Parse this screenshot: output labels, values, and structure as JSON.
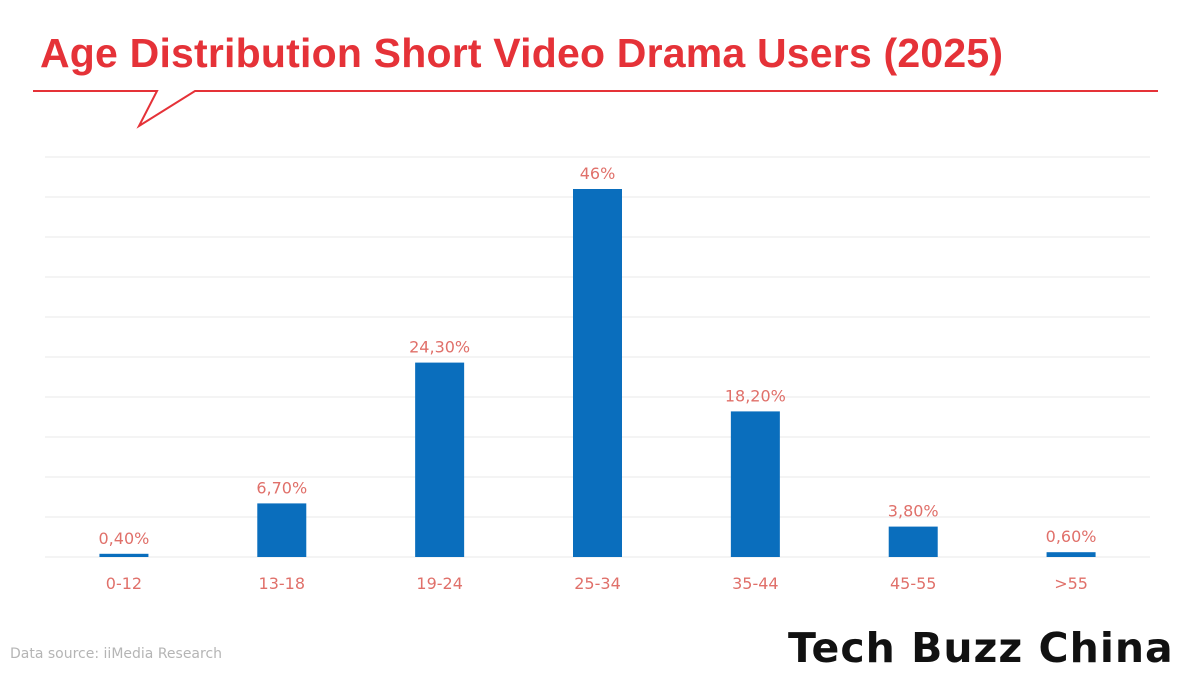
{
  "title": "Age Distribution Short Video Drama Users (2025)",
  "source": "Data source: iiMedia Research",
  "brand": "Tech Buzz China",
  "colors": {
    "title": "#e53238",
    "bar": "#0a6ebd",
    "data_label": "#e0706a",
    "tick_label": "#e0706a",
    "grid": "#e9e9e9",
    "callout_line": "#e53238"
  },
  "chart_data": {
    "type": "bar",
    "title": "Age Distribution Short Video Drama Users (2025)",
    "categories": [
      "0-12",
      "13-18",
      "19-24",
      "25-34",
      "35-44",
      "45-55",
      ">55"
    ],
    "values": [
      0.4,
      6.7,
      24.3,
      46,
      18.2,
      3.8,
      0.6
    ],
    "data_labels": [
      "0,40%",
      "6,70%",
      "24,30%",
      "46%",
      "18,20%",
      "3,80%",
      "0,60%"
    ],
    "xlabel": "",
    "ylabel": "",
    "ylim": [
      0,
      50
    ],
    "grid": true,
    "legend": "none"
  }
}
